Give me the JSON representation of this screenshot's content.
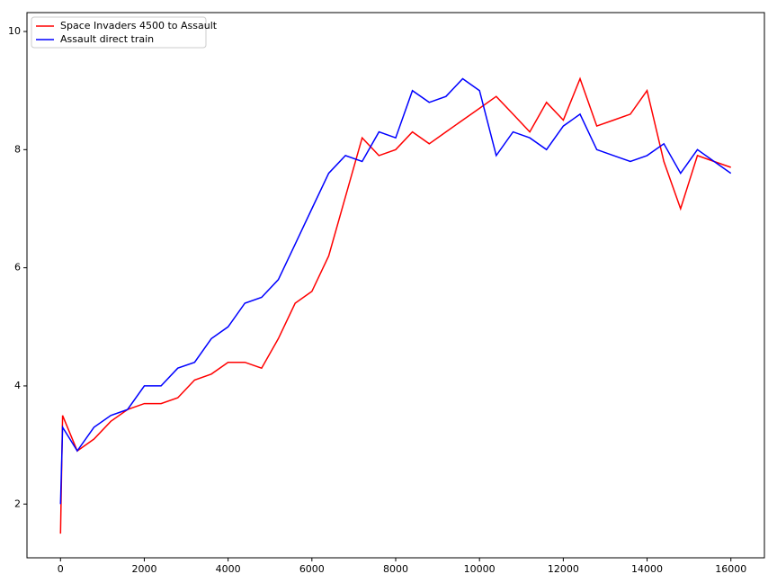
{
  "chart_data": {
    "type": "line",
    "x": [
      0,
      50,
      400,
      800,
      1200,
      1600,
      2000,
      2400,
      2800,
      3200,
      3600,
      4000,
      4400,
      4800,
      5200,
      5600,
      6000,
      6400,
      6800,
      7200,
      7600,
      8000,
      8400,
      8800,
      9200,
      9600,
      10000,
      10400,
      10800,
      11200,
      11600,
      12000,
      12400,
      12800,
      13200,
      13600,
      14000,
      14400,
      14800,
      15200,
      15600,
      16000
    ],
    "series": [
      {
        "name": "Space Invaders 4500 to Assault",
        "color": "#ff0000",
        "values": [
          1.5,
          3.5,
          2.9,
          3.1,
          3.4,
          3.6,
          3.7,
          3.7,
          3.8,
          4.1,
          4.2,
          4.4,
          4.4,
          4.3,
          4.8,
          5.4,
          5.6,
          6.2,
          7.2,
          8.2,
          7.9,
          8.0,
          8.3,
          8.1,
          8.3,
          8.5,
          8.7,
          8.9,
          8.6,
          8.3,
          8.8,
          8.5,
          9.2,
          8.4,
          8.5,
          8.6,
          9.0,
          7.8,
          7.0,
          7.9,
          7.8,
          7.7
        ]
      },
      {
        "name": "Assault direct train",
        "color": "#0000ff",
        "values": [
          2.0,
          3.3,
          2.9,
          3.3,
          3.5,
          3.6,
          4.0,
          4.0,
          4.3,
          4.4,
          4.8,
          5.0,
          5.4,
          5.5,
          5.8,
          6.4,
          7.0,
          7.6,
          7.9,
          7.8,
          8.3,
          8.2,
          9.0,
          8.8,
          8.9,
          9.2,
          9.0,
          7.9,
          8.3,
          8.2,
          8.0,
          8.4,
          8.6,
          8.0,
          7.9,
          7.8,
          7.9,
          8.1,
          7.6,
          8.0,
          7.8,
          7.6
        ]
      }
    ],
    "xlim": [
      -800,
      16800
    ],
    "ylim": [
      1.09,
      10.32
    ],
    "xticks": [
      0,
      2000,
      4000,
      6000,
      8000,
      10000,
      12000,
      14000,
      16000
    ],
    "yticks": [
      2,
      4,
      6,
      8,
      10
    ],
    "grid": false,
    "legend": "upper-left"
  }
}
